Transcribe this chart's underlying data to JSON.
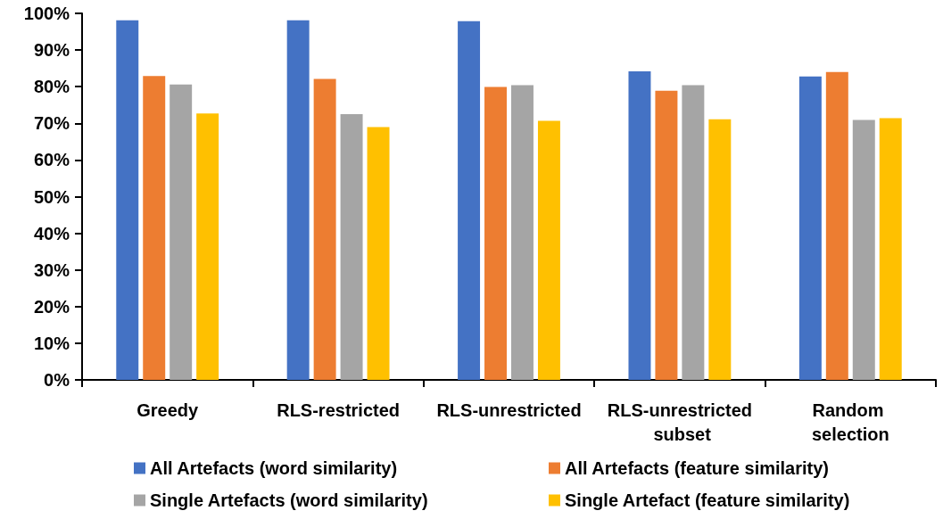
{
  "chart_data": {
    "type": "bar",
    "categories": [
      "Greedy",
      "RLS-restricted",
      "RLS-unrestricted",
      "RLS-unrestricted subset",
      "Random selection"
    ],
    "series": [
      {
        "name": "All Artefacts (word similarity)",
        "color": "#4472c4",
        "values": [
          98.1,
          98.1,
          97.9,
          84.2,
          82.8
        ]
      },
      {
        "name": "All Artefacts (feature similarity)",
        "color": "#ed7d31",
        "values": [
          82.9,
          82.1,
          79.9,
          78.9,
          84.0
        ]
      },
      {
        "name": "Single Artefacts (word similarity)",
        "color": "#a5a5a5",
        "values": [
          80.6,
          72.5,
          80.4,
          80.4,
          70.9
        ]
      },
      {
        "name": "Single Artefact (feature similarity)",
        "color": "#ffc000",
        "values": [
          72.7,
          69.0,
          70.7,
          71.1,
          71.4
        ]
      }
    ],
    "ylim": [
      0,
      100
    ],
    "yticks": [
      {
        "value": 0,
        "label": "0%"
      },
      {
        "value": 10,
        "label": "10%"
      },
      {
        "value": 20,
        "label": "20%"
      },
      {
        "value": 30,
        "label": "30%"
      },
      {
        "value": 40,
        "label": "40%"
      },
      {
        "value": 50,
        "label": "50%"
      },
      {
        "value": 60,
        "label": "60%"
      },
      {
        "value": 70,
        "label": "70%"
      },
      {
        "value": 80,
        "label": "80%"
      },
      {
        "value": 90,
        "label": "90%"
      },
      {
        "value": 100,
        "label": "100%"
      }
    ],
    "grid": false,
    "legend": "bottom"
  }
}
